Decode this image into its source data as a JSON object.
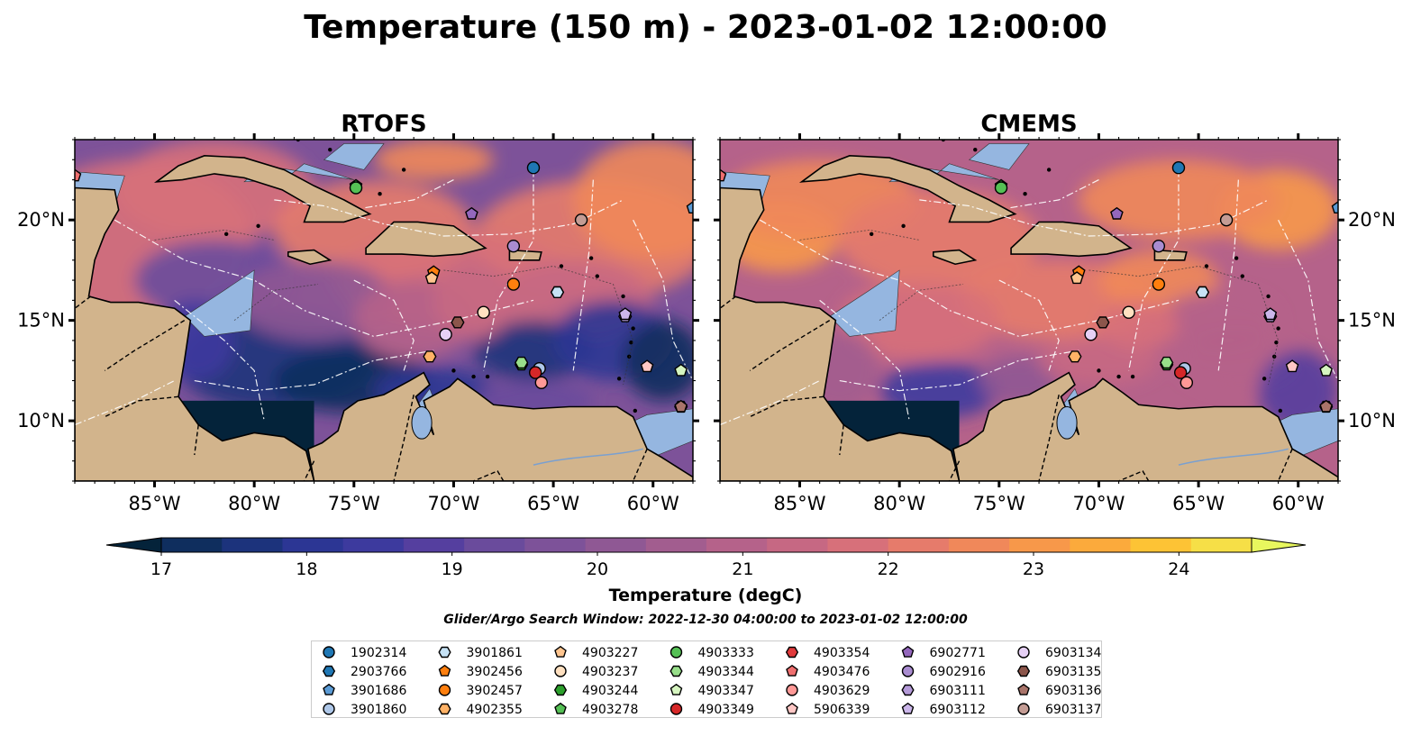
{
  "figure": {
    "title": "Temperature (150 m) - 2023-01-02 12:00:00",
    "colorbar_label": "Temperature (degC)",
    "search_window": "Glider/Argo Search Window: 2022-12-30 04:00:00 to 2023-01-02 12:00:00"
  },
  "chart_data": {
    "type": "heatmap",
    "variable": "Temperature (150 m)",
    "panels": [
      {
        "title": "RTOFS",
        "model": "rtofs"
      },
      {
        "title": "CMEMS",
        "model": "cmems"
      }
    ],
    "lon_range": [
      -89,
      -58
    ],
    "lat_range": [
      7,
      24
    ],
    "lon_ticks": [
      -85,
      -80,
      -75,
      -70,
      -65,
      -60
    ],
    "lon_tick_labels": [
      "85°W",
      "80°W",
      "75°W",
      "70°W",
      "65°W",
      "60°W"
    ],
    "lat_ticks": [
      10,
      15,
      20
    ],
    "lat_tick_labels": [
      "10°N",
      "15°N",
      "20°N"
    ],
    "colorbar": {
      "min": 17,
      "max": 24.5,
      "step": 0.5,
      "extend": "both",
      "ticks": [
        17,
        18,
        19,
        20,
        21,
        22,
        23,
        24
      ],
      "colors": [
        "#04233a",
        "#0f2e5e",
        "#1c337c",
        "#2c3694",
        "#3d3a9e",
        "#553f9f",
        "#6a4b9c",
        "#7d5299",
        "#8f5894",
        "#a25d8f",
        "#b5628a",
        "#c66883",
        "#d7707a",
        "#e67b6b",
        "#f0885a",
        "#f7984a",
        "#fbaa3c",
        "#fdc335",
        "#f6df47",
        "#e8f75e"
      ]
    },
    "land_color": "#d2b48c",
    "ocean_shallow_color": "#95b6e0",
    "floats": [
      {
        "id": "1902314",
        "lon": -66.0,
        "lat": 22.6,
        "color": "#1f77b4",
        "marker": "circle"
      },
      {
        "id": "2903766",
        "lon": -64.8,
        "lat": 16.4,
        "color": "#1f77b4",
        "marker": "hexagon"
      },
      {
        "id": "3901686",
        "lon": -58.0,
        "lat": 20.6,
        "color": "#5b9bd5",
        "marker": "pentagon"
      },
      {
        "id": "3901860",
        "lon": -65.7,
        "lat": 12.6,
        "color": "#aec7e8",
        "marker": "circle"
      },
      {
        "id": "3901861",
        "lon": -64.8,
        "lat": 16.4,
        "color": "#c6e2f5",
        "marker": "hexagon"
      },
      {
        "id": "3902456",
        "lon": -71.0,
        "lat": 17.4,
        "color": "#ff7f0e",
        "marker": "pentagon"
      },
      {
        "id": "3902457",
        "lon": -67.0,
        "lat": 16.8,
        "color": "#ff7f0e",
        "marker": "circle"
      },
      {
        "id": "4902355",
        "lon": -71.2,
        "lat": 13.2,
        "color": "#ffb266",
        "marker": "hexagon"
      },
      {
        "id": "4903227",
        "lon": -71.1,
        "lat": 17.1,
        "color": "#ffc58f",
        "marker": "pentagon"
      },
      {
        "id": "4903237",
        "lon": -68.5,
        "lat": 15.4,
        "color": "#ffe0c0",
        "marker": "circle"
      },
      {
        "id": "4903244",
        "lon": -66.6,
        "lat": 12.8,
        "color": "#2ca02c",
        "marker": "hexagon"
      },
      {
        "id": "4903278",
        "lon": -74.9,
        "lat": 21.7,
        "color": "#55c055",
        "marker": "pentagon"
      },
      {
        "id": "4903333",
        "lon": -74.9,
        "lat": 21.6,
        "color": "#55c055",
        "marker": "circle"
      },
      {
        "id": "4903344",
        "lon": -66.6,
        "lat": 12.9,
        "color": "#98df8a",
        "marker": "hexagon"
      },
      {
        "id": "4903347",
        "lon": -58.6,
        "lat": 12.5,
        "color": "#d6f5c0",
        "marker": "pentagon"
      },
      {
        "id": "4903349",
        "lon": -65.9,
        "lat": 12.4,
        "color": "#d62728",
        "marker": "circle"
      },
      {
        "id": "4903354",
        "lon": -58.6,
        "lat": 10.7,
        "color": "#e03a3c",
        "marker": "hexagon"
      },
      {
        "id": "4903476",
        "lon": -89.0,
        "lat": 22.2,
        "color": "#ef6f6f",
        "marker": "pentagon"
      },
      {
        "id": "4903629",
        "lon": -65.6,
        "lat": 11.9,
        "color": "#ff9896",
        "marker": "circle"
      },
      {
        "id": "5906339",
        "lon": -60.3,
        "lat": 12.7,
        "color": "#ffc7c5",
        "marker": "pentagon"
      },
      {
        "id": "6902771",
        "lon": -69.1,
        "lat": 20.3,
        "color": "#9467bd",
        "marker": "pentagon"
      },
      {
        "id": "6902916",
        "lon": -67.0,
        "lat": 18.7,
        "color": "#a98cd0",
        "marker": "circle"
      },
      {
        "id": "6903111",
        "lon": -61.4,
        "lat": 15.2,
        "color": "#b49ad8",
        "marker": "hexagon"
      },
      {
        "id": "6903112",
        "lon": -61.4,
        "lat": 15.3,
        "color": "#cbb6ea",
        "marker": "pentagon"
      },
      {
        "id": "6903134",
        "lon": -70.4,
        "lat": 14.3,
        "color": "#e6d0f5",
        "marker": "circle"
      },
      {
        "id": "6903135",
        "lon": -69.8,
        "lat": 14.9,
        "color": "#8c564b",
        "marker": "hexagon"
      },
      {
        "id": "6903136",
        "lon": -58.6,
        "lat": 10.7,
        "color": "#a9746a",
        "marker": "pentagon"
      },
      {
        "id": "6903137",
        "lon": -63.6,
        "lat": 20.0,
        "color": "#c49c94",
        "marker": "circle"
      }
    ]
  }
}
